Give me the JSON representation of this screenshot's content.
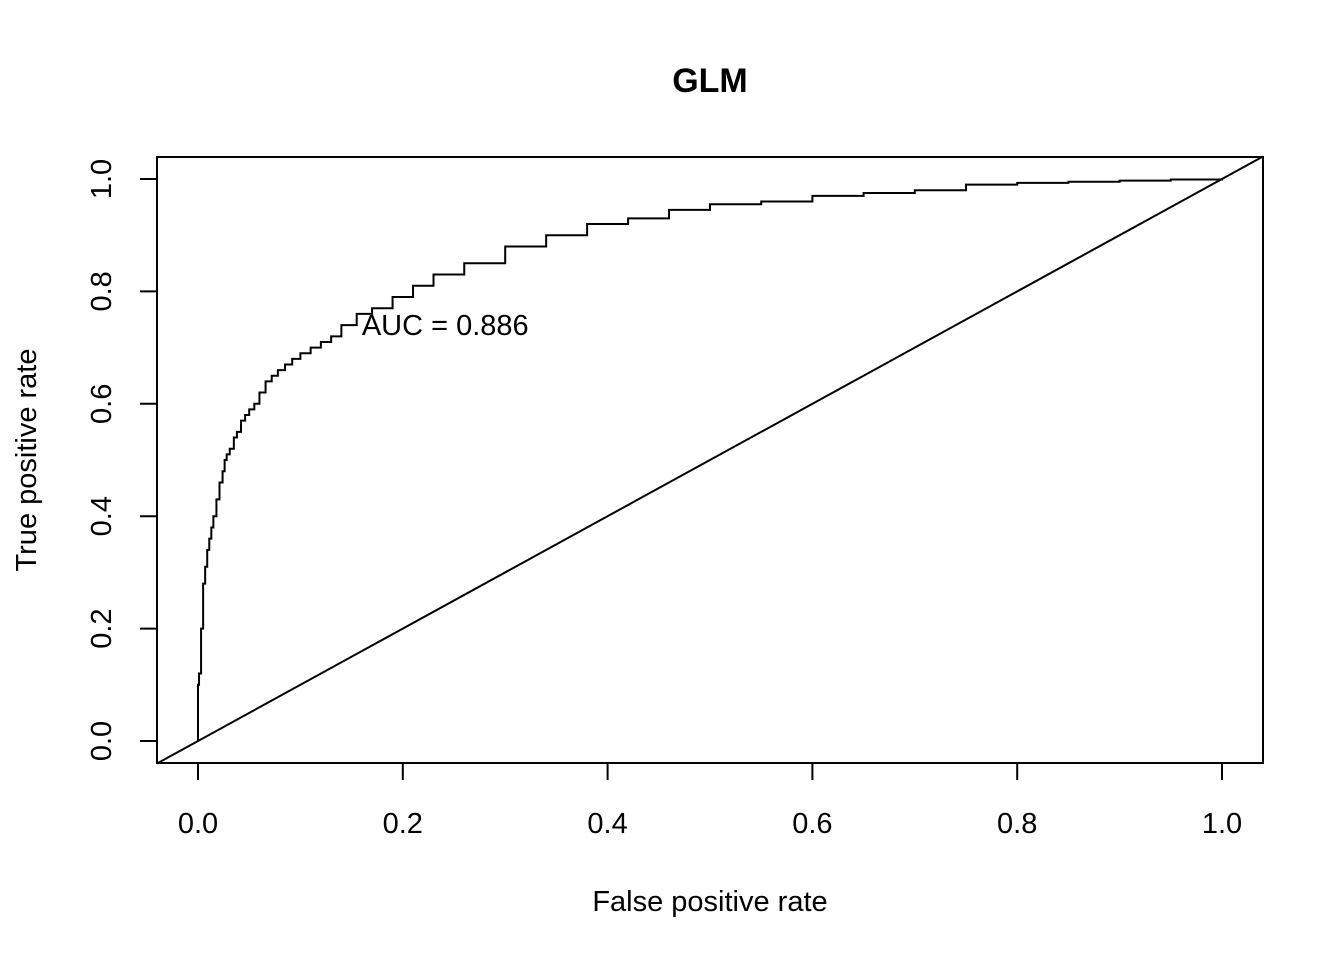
{
  "chart_data": {
    "type": "line",
    "title": "GLM",
    "xlabel": "False positive rate",
    "ylabel": "True positive rate",
    "xlim": [
      0,
      1
    ],
    "ylim": [
      0,
      1
    ],
    "x_ticks": [
      "0.0",
      "0.2",
      "0.4",
      "0.6",
      "0.8",
      "1.0"
    ],
    "y_ticks": [
      "0.0",
      "0.2",
      "0.4",
      "0.6",
      "0.8",
      "1.0"
    ],
    "grid": false,
    "legend": "none",
    "annotation": {
      "text": "AUC = 0.886",
      "x": 0.16,
      "y": 0.74
    },
    "series": [
      {
        "role": "roc-curve",
        "x": [
          0.0,
          0.0,
          0.001,
          0.003,
          0.005,
          0.007,
          0.009,
          0.011,
          0.013,
          0.015,
          0.018,
          0.021,
          0.024,
          0.026,
          0.028,
          0.031,
          0.035,
          0.038,
          0.042,
          0.046,
          0.05,
          0.055,
          0.06,
          0.066,
          0.072,
          0.078,
          0.085,
          0.092,
          0.1,
          0.11,
          0.12,
          0.13,
          0.14,
          0.155,
          0.17,
          0.19,
          0.21,
          0.23,
          0.26,
          0.3,
          0.34,
          0.38,
          0.42,
          0.46,
          0.5,
          0.55,
          0.6,
          0.65,
          0.7,
          0.75,
          0.8,
          0.85,
          0.9,
          0.95,
          1.0
        ],
        "y": [
          0.0,
          0.1,
          0.12,
          0.2,
          0.28,
          0.31,
          0.34,
          0.36,
          0.38,
          0.4,
          0.43,
          0.46,
          0.48,
          0.5,
          0.51,
          0.52,
          0.54,
          0.55,
          0.57,
          0.58,
          0.59,
          0.6,
          0.62,
          0.64,
          0.65,
          0.66,
          0.67,
          0.68,
          0.69,
          0.7,
          0.71,
          0.72,
          0.74,
          0.76,
          0.77,
          0.79,
          0.81,
          0.83,
          0.85,
          0.88,
          0.9,
          0.92,
          0.93,
          0.945,
          0.955,
          0.96,
          0.97,
          0.975,
          0.98,
          0.99,
          0.993,
          0.995,
          0.997,
          0.999,
          1.0
        ]
      },
      {
        "role": "diagonal-reference",
        "x": [
          -0.04,
          1.04
        ],
        "y": [
          -0.04,
          1.04
        ]
      }
    ]
  }
}
